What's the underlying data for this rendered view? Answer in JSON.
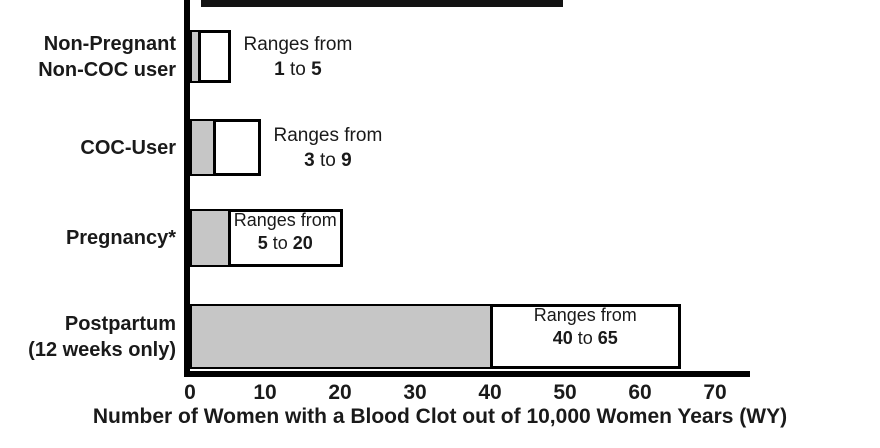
{
  "chart_data": {
    "type": "bar",
    "orientation": "horizontal",
    "title": "",
    "xlabel": "Number of Women with a Blood Clot out of 10,000 Women Years (WY)",
    "xlim": [
      0,
      70
    ],
    "xticks": [
      "0",
      "10",
      "20",
      "30",
      "40",
      "50",
      "60",
      "70"
    ],
    "grid": false,
    "legend": "none",
    "bar_fill_color": "#c6c6c6",
    "range_box_color": "#ffffff",
    "bars": [
      {
        "category": "Non-Pregnant Non-COC user",
        "label_lines": [
          "Non-Pregnant",
          "Non-COC user"
        ],
        "low": 1,
        "high": 5,
        "annotation_prefix": "Ranges from",
        "to_word": "to",
        "annotation_text": "Ranges from 1 to 5",
        "annotation_position": "right"
      },
      {
        "category": "COC-User",
        "label_lines": [
          "COC-User",
          ""
        ],
        "low": 3,
        "high": 9,
        "annotation_prefix": "Ranges from",
        "to_word": "to",
        "annotation_text": "Ranges from 3 to 9",
        "annotation_position": "right"
      },
      {
        "category": "Pregnancy*",
        "label_lines": [
          "Pregnancy*",
          ""
        ],
        "low": 5,
        "high": 20,
        "annotation_prefix": "Ranges from",
        "to_word": "to",
        "annotation_text": "Ranges from 5 to 20",
        "annotation_position": "inside"
      },
      {
        "category": "Postpartum (12 weeks only)",
        "label_lines": [
          "Postpartum",
          "(12 weeks only)"
        ],
        "low": 40,
        "high": 65,
        "annotation_prefix": "Ranges from",
        "to_word": "to",
        "annotation_text": "Ranges from 40 to 65",
        "annotation_position": "inside"
      }
    ]
  }
}
